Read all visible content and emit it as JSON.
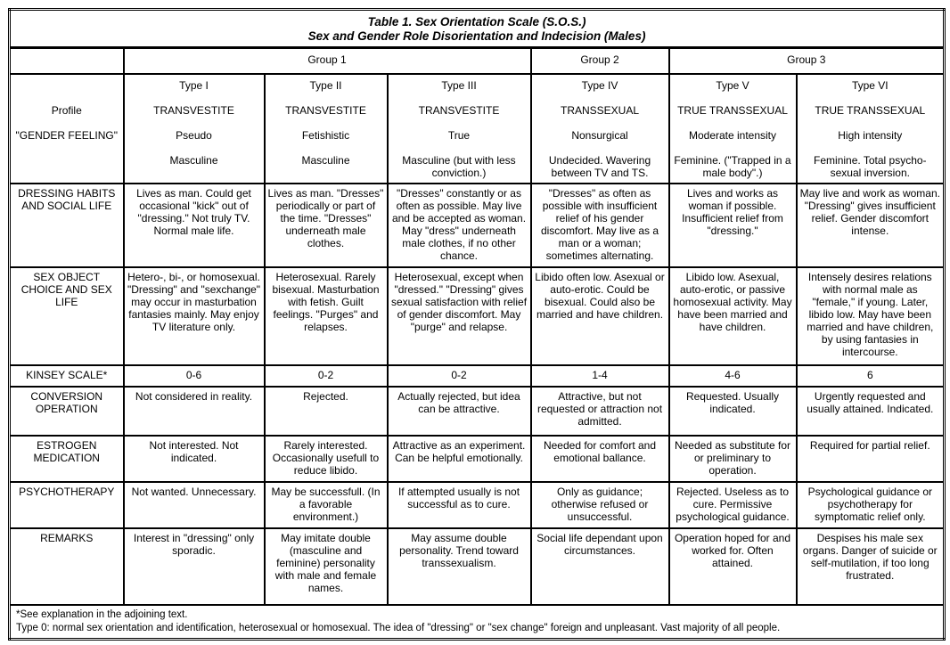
{
  "title": {
    "line1": "Table 1. Sex Orientation Scale (S.O.S.)",
    "line2": "Sex and Gender Role Disorientation and Indecision (Males)"
  },
  "groups": [
    "Group 1",
    "Group 2",
    "Group 3"
  ],
  "header_labels": [
    "",
    "Profile",
    "\"GENDER FEELING\"",
    ""
  ],
  "types": [
    {
      "type": "Type I",
      "profile": "TRANSVESTITE",
      "feeling": "Pseudo",
      "gender": "Masculine"
    },
    {
      "type": "Type II",
      "profile": "TRANSVESTITE",
      "feeling": "Fetishistic",
      "gender": "Masculine"
    },
    {
      "type": "Type III",
      "profile": "TRANSVESTITE",
      "feeling": "True",
      "gender": "Masculine (but with less conviction.)"
    },
    {
      "type": "Type IV",
      "profile": "TRANSSEXUAL",
      "feeling": "Nonsurgical",
      "gender": "Undecided. Wavering between TV and TS."
    },
    {
      "type": "Type V",
      "profile": "TRUE TRANSSEXUAL",
      "feeling": "Moderate intensity",
      "gender": "Feminine. (\"Trapped in a male body\".)"
    },
    {
      "type": "Type VI",
      "profile": "TRUE TRANSSEXUAL",
      "feeling": "High intensity",
      "gender": "Feminine. Total psycho-sexual inversion."
    }
  ],
  "rows": [
    {
      "label": "DRESSING HABITS AND SOCIAL LIFE",
      "cells": [
        "Lives as man. Could get occasional \"kick\" out of \"dressing.\" Not truly TV. Normal male life.",
        "Lives as man. \"Dresses\" periodically or part of the time. \"Dresses\" underneath male clothes.",
        "\"Dresses\" constantly or as often as possible. May live and be accepted as woman. May \"dress\" underneath male clothes, if no other chance.",
        "\"Dresses\" as often as possible with insufficient relief of his gender discomfort. May live as a man or a woman; sometimes alternating.",
        "Lives and works as woman if possible. Insufficient relief from \"dressing.\"",
        "May live and work as woman. \"Dressing\" gives insufficient relief. Gender discomfort intense."
      ]
    },
    {
      "label": "SEX OBJECT CHOICE AND SEX LIFE",
      "cells": [
        "Hetero-, bi-, or homosexual. \"Dressing\" and \"sexchange\" may occur in masturbation fantasies mainly. May enjoy TV literature only.",
        "Heterosexual. Rarely bisexual. Masturbation with fetish. Guilt feelings. \"Purges\" and relapses.",
        "Heterosexual, except when \"dressed.\" \"Dressing\" gives sexual satisfaction with relief of gender discomfort. May \"purge\" and relapse.",
        "Libido often low. Asexual or auto-erotic. Could be bisexual. Could also be married and have children.",
        "Libido low. Asexual, auto-erotic, or passive homosexual activity. May have been married and have children.",
        "Intensely desires relations with normal male as \"female,\" if young. Later, libido low. May have been married and have children, by using fantasies in intercourse."
      ]
    },
    {
      "label": "KINSEY SCALE*",
      "cells": [
        "0-6",
        "0-2",
        "0-2",
        "1-4",
        "4-6",
        "6"
      ]
    },
    {
      "label": "CONVERSION OPERATION",
      "cells": [
        "Not considered in reality.",
        "Rejected.",
        "Actually rejected, but idea can be attractive.",
        "Attractive, but not requested or attraction not admitted.",
        "Requested. Usually indicated.",
        "Urgently requested and usually attained. Indicated."
      ]
    },
    {
      "label": "ESTROGEN MEDICATION",
      "cells": [
        "Not interested. Not indicated.",
        "Rarely interested. Occasionally usefull to reduce libido.",
        "Attractive as an experiment. Can be helpful emotionally.",
        "Needed for comfort and emotional ballance.",
        "Needed as substitute for or preliminary to operation.",
        "Required for partial relief."
      ]
    },
    {
      "label": "PSYCHOTHERAPY",
      "cells": [
        "Not wanted. Unnecessary.",
        "May be successfull. (In a favorable environment.)",
        "If attempted usually is not successful as to cure.",
        "Only as guidance; otherwise refused or unsuccessful.",
        "Rejected. Useless as to cure. Permissive psychological guidance.",
        "Psychological guidance or psychotherapy for symptomatic relief only."
      ]
    },
    {
      "label": "REMARKS",
      "cells": [
        "Interest in \"dressing\" only sporadic.",
        "May imitate double (masculine and feminine) personality with male and female names.",
        "May assume double personality. Trend toward transsexualism.",
        "Social life dependant upon circumstances.",
        "Operation hoped for and worked for. Often attained.",
        "Despises his male sex organs. Danger of suicide or self-mutilation, if too long frustrated."
      ]
    }
  ],
  "footnotes": [
    "*See explanation in the adjoining text.",
    "Type 0: normal sex orientation and identification, heterosexual or homosexual. The idea of \"dressing\" or \"sex change\" foreign and unpleasant. Vast majority of all people."
  ]
}
